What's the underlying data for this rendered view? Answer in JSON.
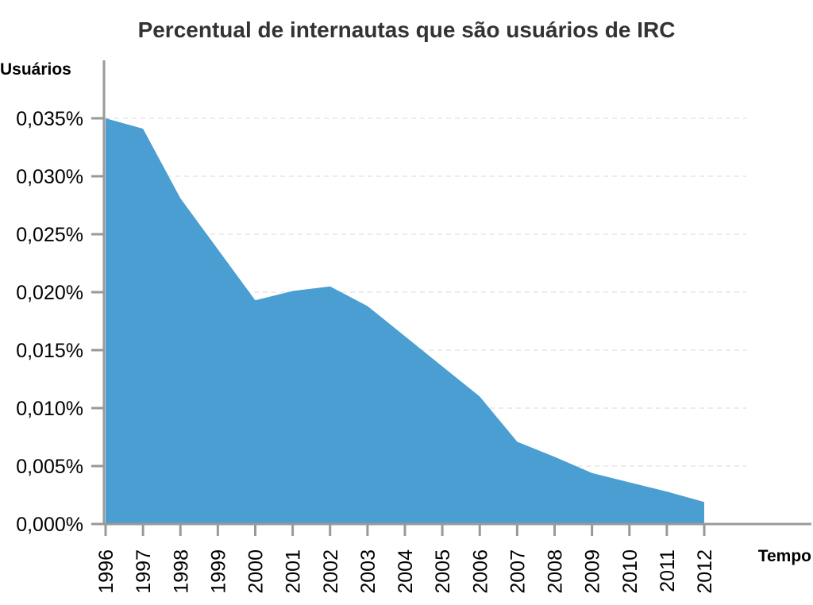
{
  "chart_data": {
    "type": "area",
    "title": "Percentual de internautas que são usuários de IRC",
    "xlabel": "Tempo",
    "ylabel": "Usuários",
    "x": [
      "1996",
      "1997",
      "1998",
      "1999",
      "2000",
      "2001",
      "2002",
      "2003",
      "2004",
      "2005",
      "2006",
      "2007",
      "2008",
      "2009",
      "2010",
      "2011",
      "2012"
    ],
    "series": [
      {
        "values": [
          0.035,
          0.0341,
          0.0281,
          0.0237,
          0.0193,
          0.0201,
          0.0205,
          0.0188,
          0.0162,
          0.0136,
          0.011,
          0.0071,
          0.0058,
          0.0044,
          0.0036,
          0.0028,
          0.0019
        ]
      }
    ],
    "y_ticks": [
      0,
      0.005,
      0.01,
      0.015,
      0.02,
      0.025,
      0.03,
      0.035
    ],
    "y_tick_labels": [
      "0,000%",
      "0,005%",
      "0,010%",
      "0,015%",
      "0,020%",
      "0,025%",
      "0,030%",
      "0,035%"
    ],
    "ylim": [
      0,
      0.035
    ],
    "grid": true,
    "legend": "none",
    "colors": {
      "area": "#4a9ed1",
      "axis": "#999999",
      "grid": "#d9d9d9",
      "title": "#333333"
    }
  }
}
